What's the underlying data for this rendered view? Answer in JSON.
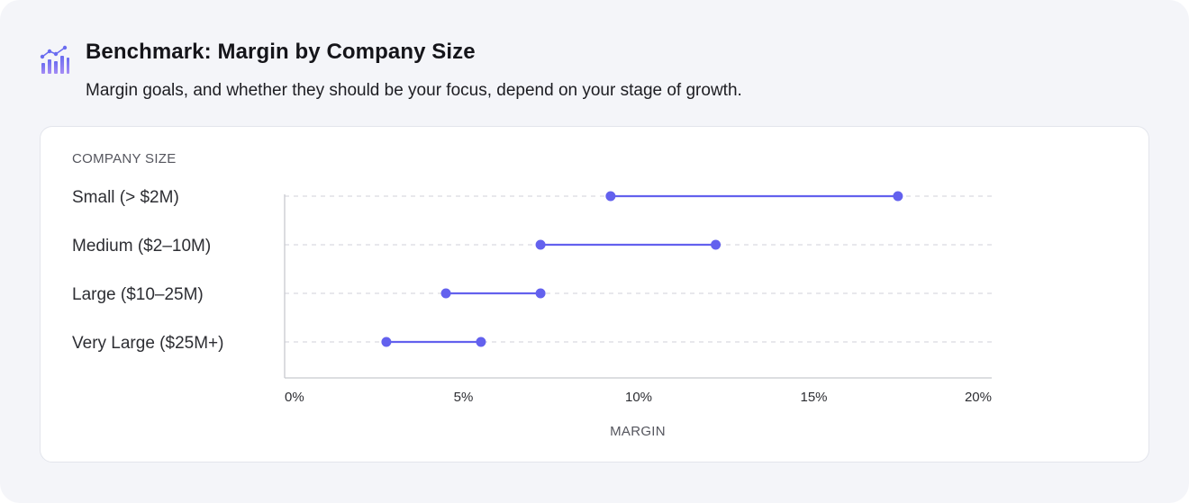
{
  "header": {
    "title": "Benchmark: Margin by Company Size",
    "subtitle": "Margin goals, and whether they should be your focus, depend on your stage of growth.",
    "icon": "bar-chart-trend-icon"
  },
  "colors": {
    "accent": "#6361ee",
    "icon_gradient_top": "#6a6cf0",
    "icon_gradient_bottom": "#a58cf5",
    "grid": "#d9dae0",
    "axis": "#c8c9cf"
  },
  "chart_data": {
    "type": "dumbbell",
    "title": "Benchmark: Margin by Company Size",
    "ylabel": "COMPANY SIZE",
    "xlabel": "MARGIN",
    "xlim": [
      0,
      20
    ],
    "xticks": [
      0,
      5,
      10,
      15,
      20
    ],
    "xtick_labels": [
      "0%",
      "5%",
      "10%",
      "15%",
      "20%"
    ],
    "categories": [
      "Small (> $2M)",
      "Medium ($2–10M)",
      "Large ($10–25M)",
      "Very Large ($25M+)"
    ],
    "ranges": [
      {
        "low": 9.2,
        "high": 17.4
      },
      {
        "low": 7.2,
        "high": 12.2
      },
      {
        "low": 4.5,
        "high": 7.2
      },
      {
        "low": 2.8,
        "high": 5.5
      }
    ],
    "grid": "dashed horizontal"
  }
}
